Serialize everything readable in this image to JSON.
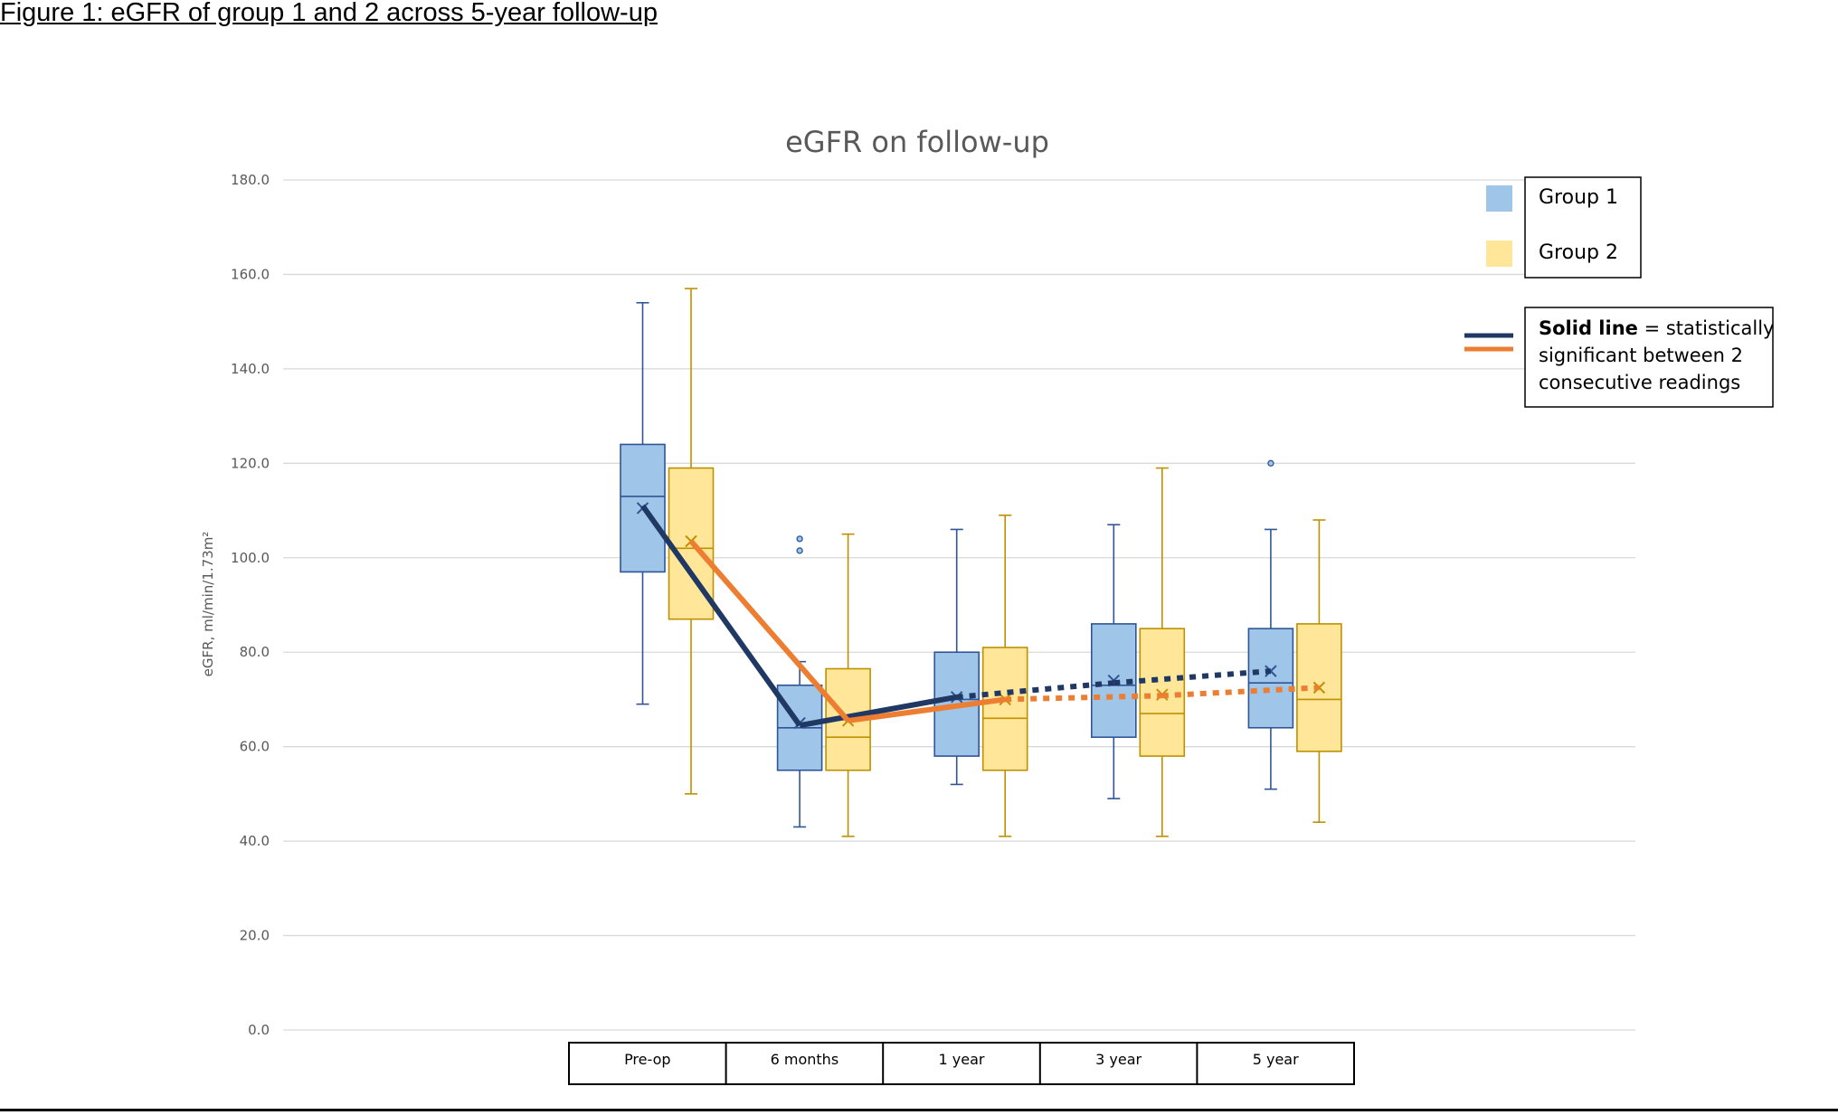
{
  "figure": {
    "caption": "Figure 1: eGFR of group 1 and 2 across 5-year follow-up"
  },
  "chart_data": {
    "type": "box",
    "title": "eGFR on follow-up",
    "xlabel": "",
    "ylabel": "eGFR, ml/min/1.73m²",
    "ylim": [
      0,
      180
    ],
    "yticks": [
      "0.0",
      "20.0",
      "40.0",
      "60.0",
      "80.0",
      "100.0",
      "120.0",
      "140.0",
      "160.0",
      "180.0"
    ],
    "grid": true,
    "categories": [
      "Pre-op",
      "6 months",
      "1 year",
      "3 year",
      "5 year"
    ],
    "series": [
      {
        "name": "Group 1",
        "color": "#9fc5e8",
        "edge_color": "#2f5597",
        "boxes": [
          {
            "min": 69,
            "q1": 97,
            "median": 113,
            "q3": 124,
            "max": 154,
            "mean": 110.5,
            "outliers": []
          },
          {
            "min": 43,
            "q1": 55,
            "median": 64,
            "q3": 73,
            "max": 78,
            "mean": 65,
            "outliers": [
              101.5,
              104
            ]
          },
          {
            "min": 52,
            "q1": 58,
            "median": 70,
            "q3": 80,
            "max": 106,
            "mean": 70.5,
            "outliers": []
          },
          {
            "min": 49,
            "q1": 62,
            "median": 73,
            "q3": 86,
            "max": 107,
            "mean": 74,
            "outliers": []
          },
          {
            "min": 51,
            "q1": 64,
            "median": 73.5,
            "q3": 85,
            "max": 106,
            "mean": 76,
            "outliers": [
              120
            ]
          }
        ]
      },
      {
        "name": "Group 2",
        "color": "#ffe699",
        "edge_color": "#bf9000",
        "boxes": [
          {
            "min": 50,
            "q1": 87,
            "median": 102,
            "q3": 119,
            "max": 157,
            "mean": 103.5,
            "outliers": []
          },
          {
            "min": 41,
            "q1": 55,
            "median": 62,
            "q3": 76.5,
            "max": 105,
            "mean": 65.5,
            "outliers": []
          },
          {
            "min": 41,
            "q1": 55,
            "median": 66,
            "q3": 81,
            "max": 109,
            "mean": 70,
            "outliers": []
          },
          {
            "min": 41,
            "q1": 58,
            "median": 67,
            "q3": 85,
            "max": 119,
            "mean": 71,
            "outliers": []
          },
          {
            "min": 44,
            "q1": 59,
            "median": 70,
            "q3": 86,
            "max": 108,
            "mean": 72.5,
            "outliers": []
          }
        ]
      }
    ],
    "trend_lines": [
      {
        "series": "Group 1",
        "color": "#203864",
        "values": [
          111,
          64.5,
          70.5,
          73.5,
          76
        ],
        "solid_segments": [
          0,
          1
        ]
      },
      {
        "series": "Group 2",
        "color": "#ed7d31",
        "values": [
          103.5,
          65.5,
          70,
          70.8,
          72.5
        ],
        "solid_segments": [
          0,
          1
        ]
      }
    ],
    "legend": {
      "position": "top-right",
      "entries": [
        "Group 1",
        "Group 2"
      ],
      "note": {
        "bold": "Solid line",
        "lines": [
          " = statistically",
          "significant between 2",
          "consecutive readings"
        ]
      }
    }
  }
}
